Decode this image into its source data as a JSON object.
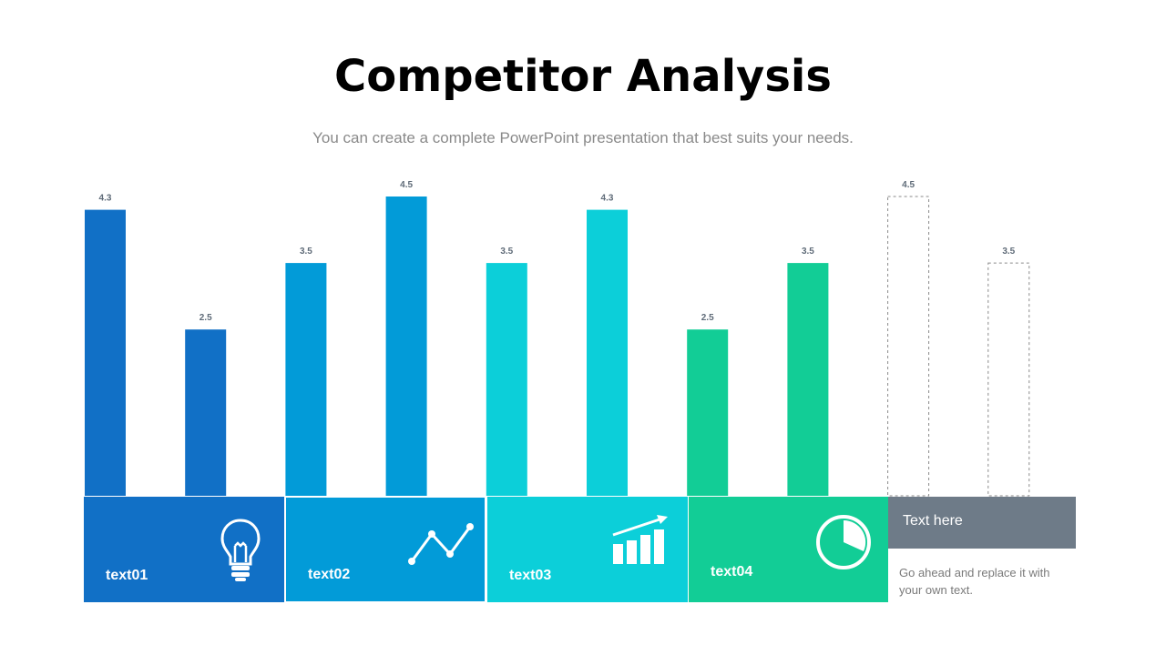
{
  "header": {
    "title": "Competitor Analysis",
    "subtitle": "You can create a complete PowerPoint presentation that best suits your needs."
  },
  "chart_data": {
    "type": "bar",
    "title": "",
    "xlabel": "",
    "ylabel": "",
    "ylim": [
      0,
      4.5
    ],
    "grid": false,
    "values": [
      4.3,
      2.5,
      3.5,
      4.5,
      3.5,
      4.3,
      2.5,
      3.5,
      4.5,
      3.5
    ],
    "labels": [
      "4.3",
      "2.5",
      "3.5",
      "4.5",
      "3.5",
      "4.3",
      "2.5",
      "3.5",
      "4.5",
      "3.5"
    ],
    "colors": [
      "#1170c6",
      "#1170c6",
      "#029bd8",
      "#029bd8",
      "#0ccfd9",
      "#0ccfd9",
      "#12cd96",
      "#12cd96",
      "none",
      "none"
    ],
    "dashed": [
      false,
      false,
      false,
      false,
      false,
      false,
      false,
      false,
      true,
      true
    ]
  },
  "panels": [
    {
      "label": "text01",
      "color": "#1170c6",
      "icon": "lightbulb-icon"
    },
    {
      "label": "text02",
      "color": "#029bd8",
      "icon": "line-chart-icon"
    },
    {
      "label": "text03",
      "color": "#0ccfd9",
      "icon": "bar-chart-growth-icon"
    },
    {
      "label": "text04",
      "color": "#12cd96",
      "icon": "pie-chart-icon"
    }
  ],
  "side": {
    "box_label": "Text  here",
    "box_color": "#6e7b88",
    "note": "Go ahead and replace it with your own text."
  }
}
